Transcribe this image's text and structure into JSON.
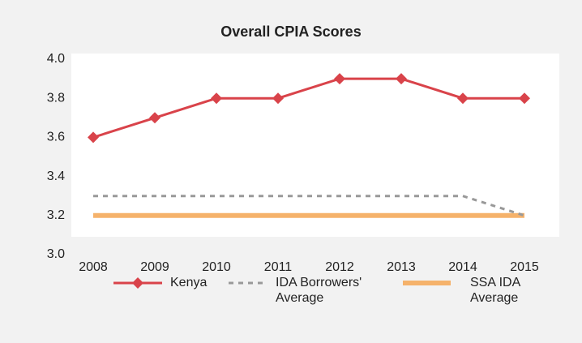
{
  "chart_data": {
    "type": "line",
    "title": "Overall CPIA Scores",
    "categories": [
      "2008",
      "2009",
      "2010",
      "2011",
      "2012",
      "2013",
      "2014",
      "2015"
    ],
    "series": [
      {
        "name": "Kenya",
        "color": "#d9434a",
        "values": [
          3.6,
          3.7,
          3.8,
          3.8,
          3.9,
          3.9,
          3.8,
          3.8
        ]
      },
      {
        "name": "IDA Borrowers' Average",
        "color": "#999999",
        "values": [
          3.3,
          3.3,
          3.3,
          3.3,
          3.3,
          3.3,
          3.3,
          3.2
        ]
      },
      {
        "name": "SSA IDA Average",
        "color": "#f5b26b",
        "values": [
          3.2,
          3.2,
          3.2,
          3.2,
          3.2,
          3.2,
          3.2,
          3.2
        ]
      }
    ],
    "ylim": [
      3.0,
      4.0
    ],
    "yticks": [
      {
        "value": 3.0,
        "label": "3.0"
      },
      3.2,
      3.4,
      3.6,
      3.8,
      {
        "value": 4.0,
        "label": "4.0"
      }
    ],
    "grid": false,
    "legend": "bottom"
  }
}
